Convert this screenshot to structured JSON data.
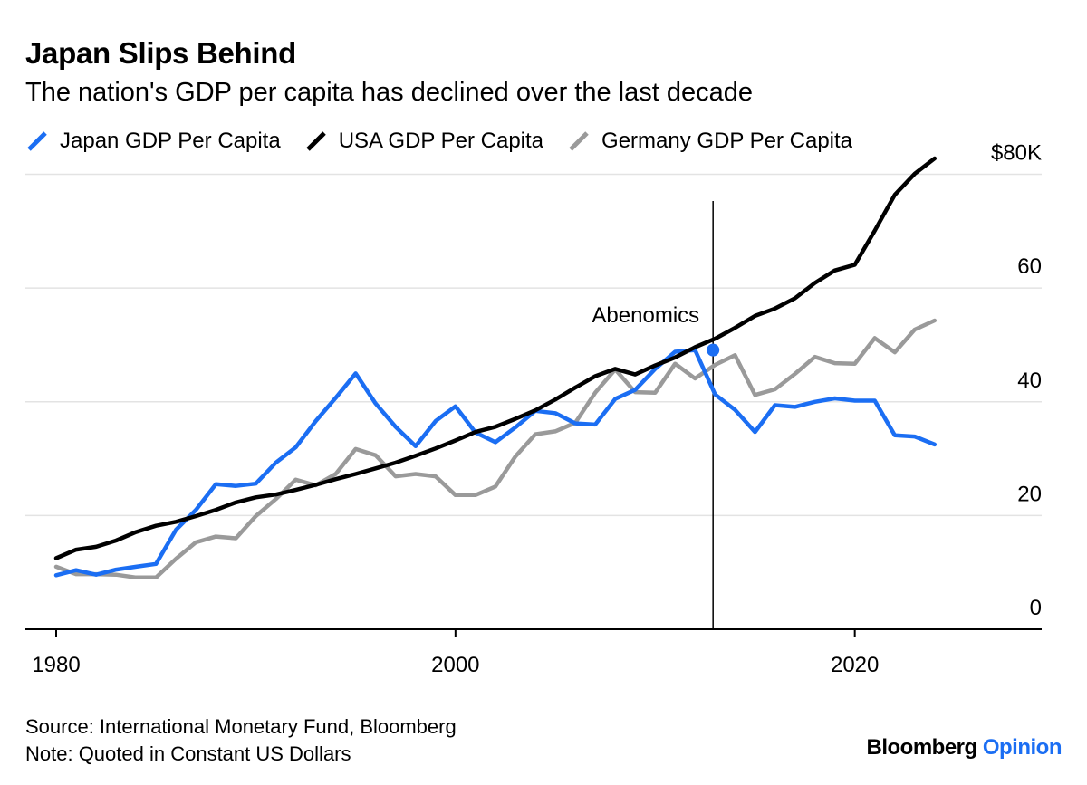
{
  "header": {
    "title": "Japan Slips Behind",
    "subtitle": "The nation's GDP per capita has declined over the last decade"
  },
  "legend": [
    {
      "label": "Japan GDP Per Capita",
      "color": "#1b6ef3"
    },
    {
      "label": "USA GDP Per Capita",
      "color": "#000000"
    },
    {
      "label": "Germany GDP Per Capita",
      "color": "#9a9a9a"
    }
  ],
  "chart_data": {
    "type": "line",
    "title": "Japan Slips Behind",
    "subtitle": "The nation's GDP per capita has declined over the last decade",
    "xlabel": "",
    "ylabel": "",
    "xlim": [
      1980,
      2028
    ],
    "ylim": [
      0,
      82
    ],
    "grid": true,
    "y_ticks": [
      0,
      20,
      40,
      60,
      80
    ],
    "y_tick_labels": [
      "0",
      "20",
      "40",
      "60",
      "$80K"
    ],
    "x_ticks": [
      1980,
      2000,
      2020
    ],
    "x_tick_labels": [
      "1980",
      "2000",
      "2020"
    ],
    "x": [
      1980,
      1981,
      1982,
      1983,
      1984,
      1985,
      1986,
      1987,
      1988,
      1989,
      1990,
      1991,
      1992,
      1993,
      1994,
      1995,
      1996,
      1997,
      1998,
      1999,
      2000,
      2001,
      2002,
      2003,
      2004,
      2005,
      2006,
      2007,
      2008,
      2009,
      2010,
      2011,
      2012,
      2013,
      2014,
      2015,
      2016,
      2017,
      2018,
      2019,
      2020,
      2021,
      2022,
      2023,
      2024,
      2025
    ],
    "series": [
      {
        "name": "Japan GDP Per Capita",
        "color": "#1b6ef3",
        "values": [
          9.5,
          10.4,
          9.6,
          10.5,
          11.0,
          11.5,
          17.5,
          21.0,
          25.5,
          25.2,
          25.6,
          29.3,
          32.0,
          36.6,
          40.7,
          45.0,
          39.7,
          35.6,
          32.2,
          36.6,
          39.2,
          34.6,
          32.9,
          35.5,
          38.4,
          38.0,
          36.2,
          36.0,
          40.5,
          42.1,
          45.8,
          48.8,
          49.1,
          41.3,
          38.6,
          34.7,
          39.4,
          39.1,
          40.0,
          40.6,
          40.2,
          40.2,
          34.1,
          33.9,
          32.5,
          null
        ]
      },
      {
        "name": "USA GDP Per Capita",
        "color": "#000000",
        "values": [
          12.5,
          14.0,
          14.5,
          15.6,
          17.1,
          18.2,
          18.9,
          19.9,
          21.0,
          22.3,
          23.2,
          23.7,
          24.5,
          25.4,
          26.4,
          27.3,
          28.3,
          29.3,
          30.5,
          31.8,
          33.2,
          34.7,
          35.6,
          37.0,
          38.5,
          40.4,
          42.5,
          44.5,
          45.8,
          44.8,
          46.4,
          47.8,
          49.6,
          51.1,
          53.0,
          55.1,
          56.4,
          58.2,
          60.9,
          63.1,
          64.1,
          70.1,
          76.4,
          80.1,
          82.8,
          null
        ]
      },
      {
        "name": "Germany GDP Per Capita",
        "color": "#9a9a9a",
        "values": [
          11.0,
          9.7,
          9.7,
          9.6,
          9.1,
          9.1,
          12.4,
          15.3,
          16.3,
          16.0,
          19.9,
          22.9,
          26.3,
          25.3,
          27.3,
          31.7,
          30.6,
          26.9,
          27.3,
          26.9,
          23.6,
          23.6,
          25.1,
          30.4,
          34.3,
          34.8,
          36.3,
          41.6,
          45.7,
          41.7,
          41.6,
          46.7,
          44.1,
          46.5,
          48.2,
          41.2,
          42.2,
          44.9,
          47.9,
          46.8,
          46.7,
          51.2,
          48.7,
          52.7,
          54.3,
          null
        ]
      }
    ],
    "annotations": [
      {
        "label": "Abenomics",
        "x": 2012,
        "type": "vertical-line"
      }
    ],
    "highlight_point": {
      "series": "Japan GDP Per Capita",
      "x": 2012,
      "y": 49.1
    }
  },
  "footer": {
    "source": "Source: International Monetary Fund, Bloomberg",
    "note": "Note: Quoted in Constant US Dollars"
  },
  "brand": {
    "name": "Bloomberg",
    "suffix": "Opinion",
    "accent": "#1b6ef3"
  }
}
